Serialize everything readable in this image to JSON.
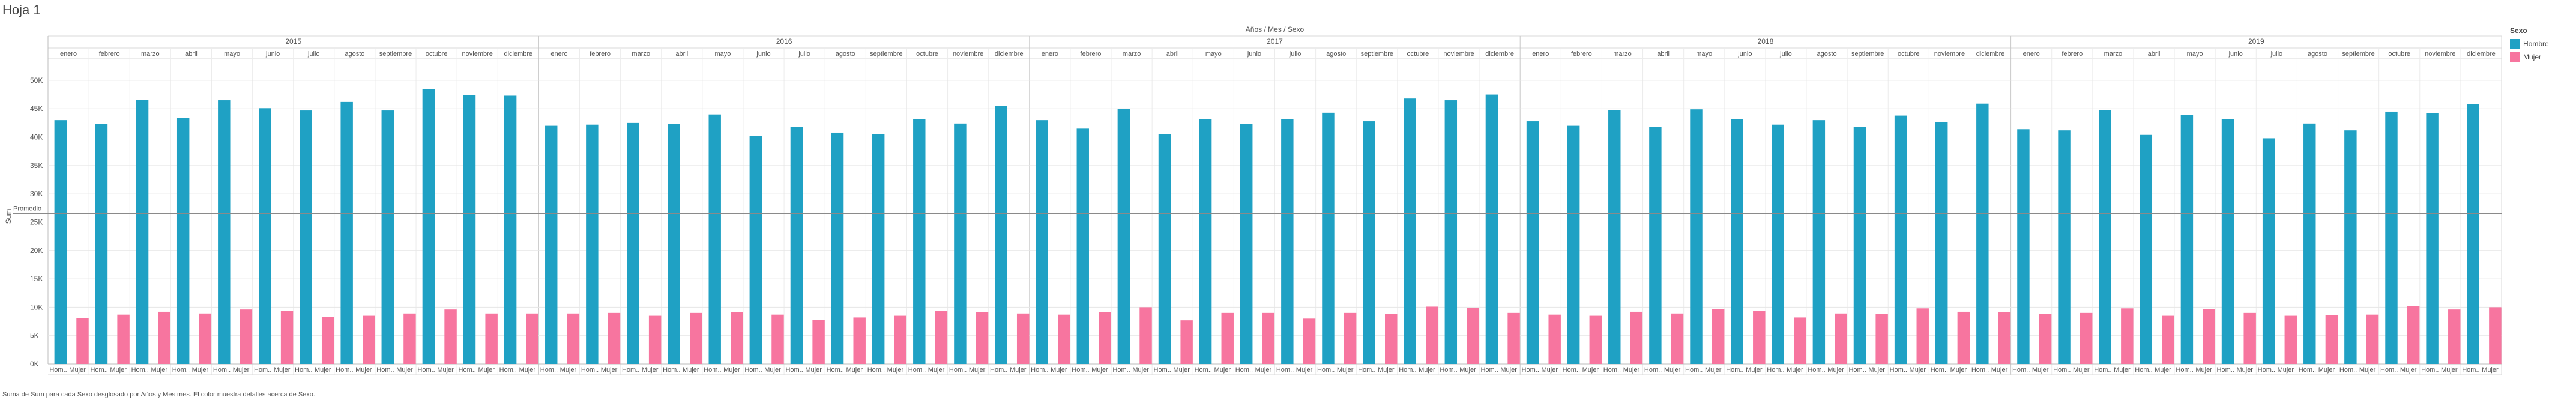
{
  "sheet": {
    "title": "Hoja 1",
    "caption": "Suma de Sum para cada Sexo desglosado por Años y Mes mes. El color muestra detalles acerca de Sexo."
  },
  "colors": {
    "Hombre": "#1fa1c4",
    "Mujer": "#f7759f",
    "reference_line": "#8a8a8a",
    "grid": "#e6e6e6"
  },
  "chart_data": {
    "type": "bar",
    "title": "",
    "header": "Años / Mes / Sexo",
    "ylabel": "Sum",
    "ylim": [
      0,
      52000
    ],
    "yticks": [
      0,
      5000,
      10000,
      15000,
      20000,
      25000,
      30000,
      35000,
      40000,
      45000,
      50000
    ],
    "ytick_labels": [
      "0K",
      "5K",
      "10K",
      "15K",
      "20K",
      "25K",
      "30K",
      "35K",
      "40K",
      "45K",
      "50K"
    ],
    "reference_line": {
      "label": "Promedio",
      "value": 26500
    },
    "years": [
      "2015",
      "2016",
      "2017",
      "2018",
      "2019"
    ],
    "months": [
      "enero",
      "febrero",
      "marzo",
      "abril",
      "mayo",
      "junio",
      "julio",
      "agosto",
      "septiembre",
      "octubre",
      "noviembre",
      "diciembre"
    ],
    "x_labels": [
      "Hom..",
      "Mujer"
    ],
    "legend": {
      "title": "Sexo",
      "items": [
        "Hombre",
        "Mujer"
      ],
      "position": "right"
    },
    "series": [
      {
        "name": "Hombre",
        "values": [
          43000,
          42300,
          46600,
          43400,
          46500,
          45100,
          44700,
          46200,
          44700,
          48500,
          47400,
          47300,
          42000,
          42200,
          42500,
          42300,
          44000,
          40200,
          41800,
          40800,
          40500,
          43200,
          42400,
          45500,
          43000,
          41500,
          45000,
          40500,
          43200,
          42300,
          43200,
          44300,
          42800,
          46800,
          46500,
          47500,
          42800,
          42000,
          44800,
          41800,
          44900,
          43200,
          42200,
          43000,
          41800,
          43800,
          42700,
          45900,
          41400,
          41200,
          44800,
          40400,
          43900,
          43200,
          39800,
          42400,
          41200,
          44500,
          44200,
          45800
        ]
      },
      {
        "name": "Mujer",
        "values": [
          8100,
          8700,
          9200,
          8900,
          9600,
          9400,
          8300,
          8500,
          8900,
          9600,
          8900,
          8900,
          8900,
          9000,
          8500,
          9000,
          9100,
          8700,
          7800,
          8200,
          8500,
          9300,
          9100,
          8900,
          8700,
          9100,
          10000,
          7700,
          9000,
          9000,
          8000,
          9000,
          8800,
          10100,
          9900,
          9000,
          8700,
          8500,
          9200,
          8900,
          9700,
          9300,
          8200,
          8900,
          8800,
          9800,
          9200,
          9100,
          8800,
          9000,
          9800,
          8500,
          9700,
          9000,
          8500,
          8600,
          8700,
          10200,
          9600,
          10000
        ]
      }
    ]
  }
}
